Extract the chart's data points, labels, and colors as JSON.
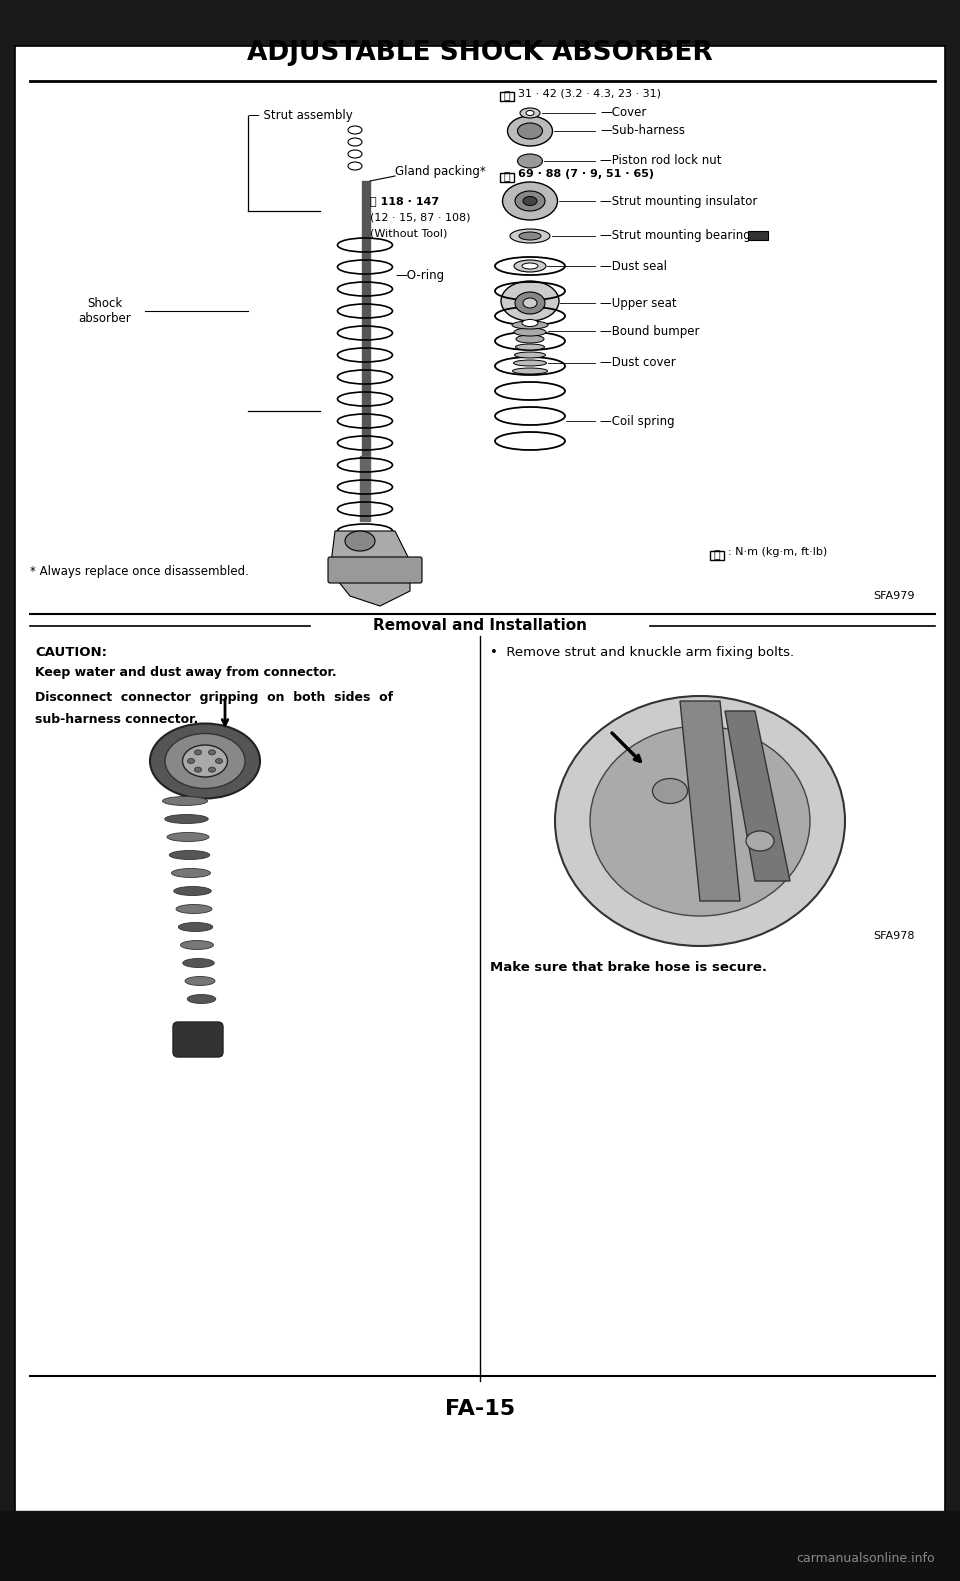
{
  "title": "ADJUSTABLE SHOCK ABSORBER",
  "page_num": "FA-15",
  "bg_color": "#ffffff",
  "outer_bg": "#1a1a1a",
  "section_header": "Removal and Installation",
  "torque_unit": "N·m (kg·m, ft·lb)",
  "torque1": "31 · 42 (3.2 · 4.3, 23 · 31)",
  "torque2_line1": "⿏ 118 · 147",
  "torque2_line2": "(12 · 15, 87 · 108)",
  "torque2_line3": "(Without Tool)",
  "torque3": "⿏ 69 · 88 (7 · 9, 51 · 65)",
  "footnote": "* Always replace once disassembled.",
  "caution_title": "CAUTION:",
  "caution_line1": "Keep water and dust away from connector.",
  "caution_line2": "Disconnect  connector  gripping  on  both  sides  of",
  "caution_line3": "sub-harness connector.",
  "bullet_text": "Remove strut and knuckle arm fixing bolts.",
  "brake_note": "Make sure that brake hose is secure.",
  "watermark": "carmanualsonline.info",
  "sfa979": "SFA979",
  "sfa978": "SFA978"
}
